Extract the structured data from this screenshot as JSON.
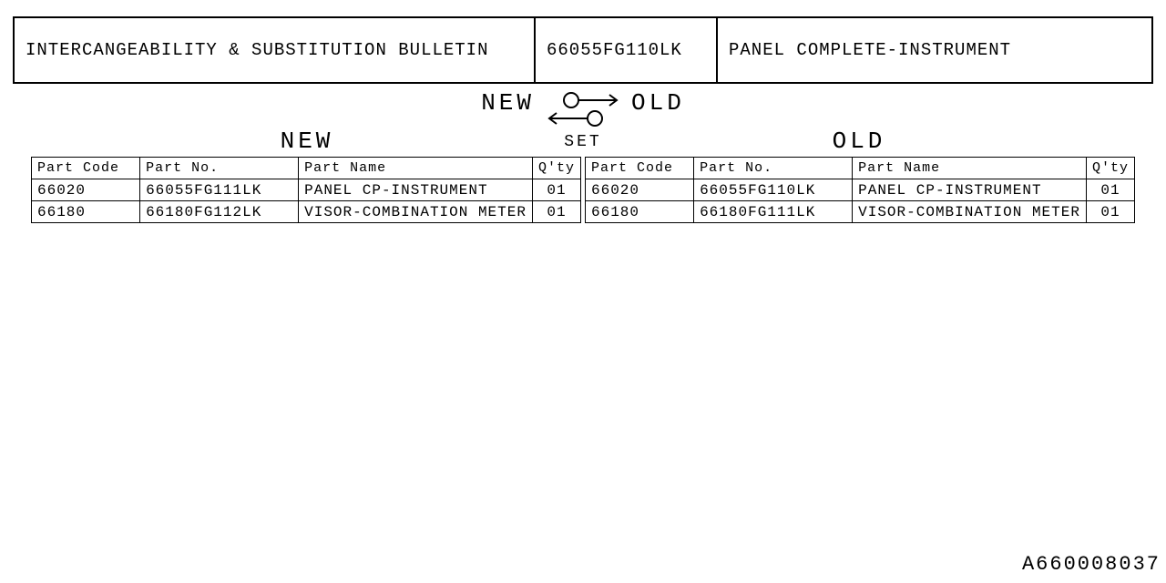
{
  "header": {
    "title": "INTERCANGEABILITY & SUBSTITUTION BULLETIN",
    "part_no": "66055FG110LK",
    "part_name": "PANEL COMPLETE-INSTRUMENT"
  },
  "diagram": {
    "new_label": "NEW",
    "old_label": "OLD",
    "set_label": "SET"
  },
  "section_labels": {
    "new": "NEW",
    "old": "OLD"
  },
  "columns": {
    "part_code": "Part Code",
    "part_no": "Part No.",
    "part_name": "Part Name",
    "qty": "Q'ty"
  },
  "col_widths": {
    "code": 120,
    "no": 176,
    "name": 254,
    "qty": 48
  },
  "new_rows": [
    {
      "code": "66020",
      "no": "66055FG111LK",
      "name": "PANEL CP-INSTRUMENT",
      "qty": "01"
    },
    {
      "code": "66180",
      "no": "66180FG112LK",
      "name": "VISOR-COMBINATION METER",
      "qty": "01"
    }
  ],
  "old_rows": [
    {
      "code": "66020",
      "no": "66055FG110LK",
      "name": "PANEL CP-INSTRUMENT",
      "qty": "01"
    },
    {
      "code": "66180",
      "no": "66180FG111LK",
      "name": "VISOR-COMBINATION METER",
      "qty": "01"
    }
  ],
  "reference_no": "A660008037",
  "style": {
    "text_color": "#000000",
    "bg_color": "#ffffff",
    "border_color": "#000000",
    "font_family": "Courier New, monospace"
  }
}
